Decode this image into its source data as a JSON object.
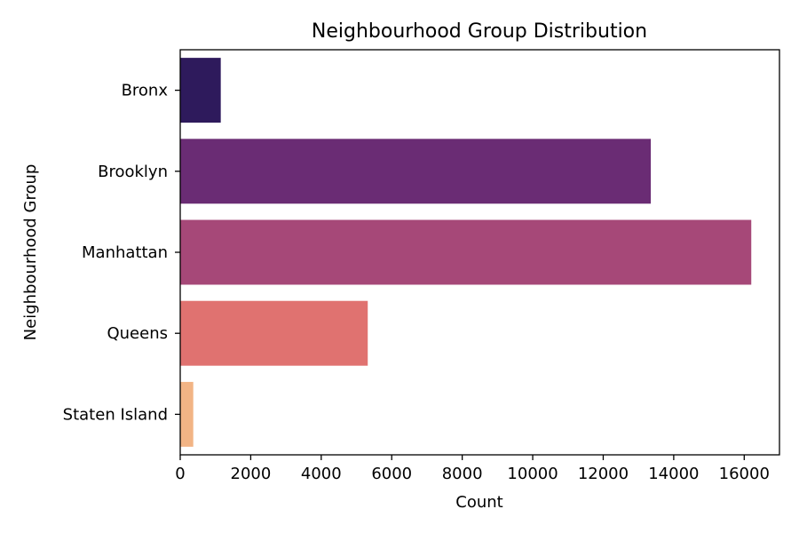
{
  "chart_data": {
    "type": "bar",
    "orientation": "horizontal",
    "title": "Neighbourhood Group Distribution",
    "xlabel": "Count",
    "ylabel": "Neighbourhood Group",
    "categories": [
      "Bronx",
      "Brooklyn",
      "Manhattan",
      "Queens",
      "Staten Island"
    ],
    "values": [
      1150,
      13350,
      16200,
      5320,
      370
    ],
    "colors": [
      "#2e1a5c",
      "#6a2c74",
      "#a64878",
      "#e07270",
      "#f2b485"
    ],
    "xlim": [
      0,
      17000
    ],
    "xticks": [
      0,
      2000,
      4000,
      6000,
      8000,
      10000,
      12000,
      14000,
      16000
    ],
    "grid": false,
    "legend": "none"
  }
}
